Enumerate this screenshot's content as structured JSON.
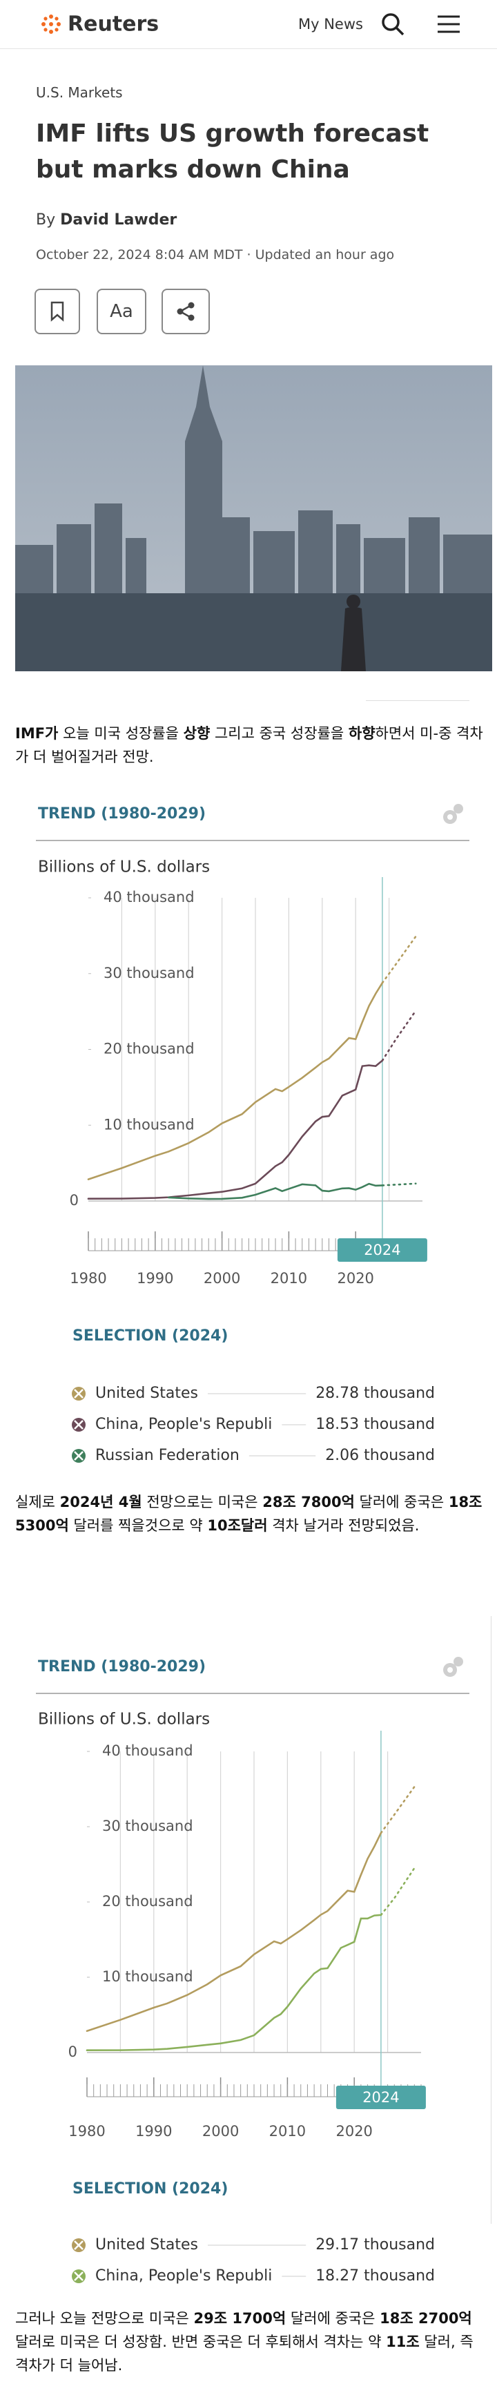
{
  "header": {
    "logo": "Reuters",
    "nav": "My News"
  },
  "article": {
    "section": "U.S. Markets",
    "title": "IMF lifts US growth forecast but marks down China",
    "by": "By",
    "author": "David Lawder",
    "date": "October 22, 2024 8:04 AM MDT · Updated an hour ago",
    "font_button": "Aa",
    "paragraphs": [
      [
        {
          "text": "IMF가",
          "bold": true
        },
        {
          "text": " 오늘 미국 성장률을 ",
          "bold": false
        },
        {
          "text": "상향",
          "bold": true
        },
        {
          "text": " 그리고 중국 성장률을 ",
          "bold": false
        },
        {
          "text": "하향",
          "bold": true
        },
        {
          "text": "하면서 미-중 격차가 더 벌어질거라 전망.",
          "bold": false
        }
      ],
      [
        {
          "text": "실제로 ",
          "bold": false
        },
        {
          "text": "2024년 4월",
          "bold": true
        },
        {
          "text": " 전망으로는 미국은 ",
          "bold": false
        },
        {
          "text": "28조 7800억",
          "bold": true
        },
        {
          "text": " 달러에 중국은 ",
          "bold": false
        },
        {
          "text": "18조 5300억",
          "bold": true
        },
        {
          "text": " 달러를 찍을것으로  약 ",
          "bold": false
        },
        {
          "text": "10조달러",
          "bold": true
        },
        {
          "text": " 격차 날거라 전망되었음.",
          "bold": false
        }
      ],
      [
        {
          "text": "그러나 오늘 전망으로 미국은 ",
          "bold": false
        },
        {
          "text": "29조 1700억",
          "bold": true
        },
        {
          "text": " 달러에 중국은 ",
          "bold": false
        },
        {
          "text": "18조 2700억",
          "bold": true
        },
        {
          "text": " 달러로 미국은 더 성장함. 반면 중국은 더 후퇴해서 격차는 약 ",
          "bold": false
        },
        {
          "text": "11조",
          "bold": true
        },
        {
          "text": " 달러, 즉 격차가 더 늘어남.",
          "bold": false
        }
      ]
    ]
  },
  "chart_data": [
    {
      "type": "line",
      "title": "TREND (1980-2029)",
      "y_label": "Billions of U.S. dollars",
      "x": [
        1980,
        1985,
        1990,
        1992,
        1995,
        1998,
        2000,
        2003,
        2005,
        2008,
        2009,
        2010,
        2012,
        2014,
        2015,
        2016,
        2018,
        2019,
        2020,
        2021,
        2022,
        2023,
        2024,
        2026,
        2029
      ],
      "xlim": [
        1980,
        2030
      ],
      "xticks": [
        1980,
        1990,
        2000,
        2010,
        2020
      ],
      "ylim": [
        0,
        40
      ],
      "yticks": [
        0,
        {
          "value": 10,
          "label": "10 thousand"
        },
        {
          "value": 20,
          "label": "20 thousand"
        },
        {
          "value": 30,
          "label": "30 thousand"
        },
        {
          "value": 40,
          "label": "40 thousand"
        }
      ],
      "marker": 2024,
      "legend_title": "SELECTION (2024)",
      "series": [
        {
          "name": "United States",
          "color": "#b39c5e",
          "values": [
            2.86,
            4.34,
            5.96,
            6.52,
            7.64,
            9.06,
            10.25,
            11.46,
            13.04,
            14.77,
            14.48,
            15.05,
            16.25,
            17.6,
            18.3,
            18.8,
            20.6,
            21.5,
            21.35,
            23.6,
            25.74,
            27.36,
            28.78,
            31.2,
            34.9
          ],
          "selection_value": 28.78,
          "selection_label": "28.78 thousand"
        },
        {
          "name": "China, People's Republi",
          "color": "#6b4a58",
          "values": [
            0.3,
            0.31,
            0.4,
            0.49,
            0.74,
            1.03,
            1.21,
            1.66,
            2.29,
            4.6,
            5.1,
            6.09,
            8.5,
            10.5,
            11.1,
            11.2,
            13.9,
            14.3,
            14.7,
            17.8,
            17.9,
            17.8,
            18.53,
            21.3,
            25.1
          ],
          "selection_value": 18.53,
          "selection_label": "18.53 thousand"
        },
        {
          "name": "Russian Federation",
          "color": "#3f7f5c",
          "values": [
            null,
            null,
            null,
            0.46,
            0.34,
            0.27,
            0.28,
            0.43,
            0.82,
            1.7,
            1.3,
            1.6,
            2.2,
            2.06,
            1.36,
            1.28,
            1.66,
            1.69,
            1.49,
            1.84,
            2.27,
            2.02,
            2.06,
            2.15,
            2.3
          ],
          "selection_value": 2.06,
          "selection_label": "2.06 thousand"
        }
      ]
    },
    {
      "type": "line",
      "title": "TREND (1980-2029)",
      "y_label": "Billions of U.S. dollars",
      "x": [
        1980,
        1985,
        1990,
        1992,
        1995,
        1998,
        2000,
        2003,
        2005,
        2008,
        2009,
        2010,
        2012,
        2014,
        2015,
        2016,
        2018,
        2019,
        2020,
        2021,
        2022,
        2023,
        2024,
        2026,
        2029
      ],
      "xlim": [
        1980,
        2030
      ],
      "xticks": [
        1980,
        1990,
        2000,
        2010,
        2020
      ],
      "ylim": [
        0,
        40
      ],
      "yticks": [
        0,
        {
          "value": 10,
          "label": "10 thousand"
        },
        {
          "value": 20,
          "label": "20 thousand"
        },
        {
          "value": 30,
          "label": "30 thousand"
        },
        {
          "value": 40,
          "label": "40 thousand"
        }
      ],
      "marker": 2024,
      "legend_title": "SELECTION (2024)",
      "series": [
        {
          "name": "United States",
          "color": "#b39c5e",
          "values": [
            2.86,
            4.34,
            5.96,
            6.52,
            7.64,
            9.06,
            10.25,
            11.46,
            13.04,
            14.77,
            14.48,
            15.05,
            16.25,
            17.6,
            18.3,
            18.8,
            20.6,
            21.5,
            21.35,
            23.6,
            25.74,
            27.36,
            29.17,
            31.6,
            35.3
          ],
          "selection_value": 29.17,
          "selection_label": "29.17 thousand"
        },
        {
          "name": "China, People's Republi",
          "color": "#8bb05a",
          "values": [
            0.3,
            0.31,
            0.4,
            0.49,
            0.74,
            1.03,
            1.21,
            1.66,
            2.29,
            4.6,
            5.1,
            6.09,
            8.5,
            10.5,
            11.1,
            11.2,
            13.9,
            14.3,
            14.7,
            17.8,
            17.8,
            18.2,
            18.27,
            20.5,
            24.5
          ],
          "selection_value": 18.27,
          "selection_label": "18.27 thousand"
        }
      ]
    }
  ]
}
